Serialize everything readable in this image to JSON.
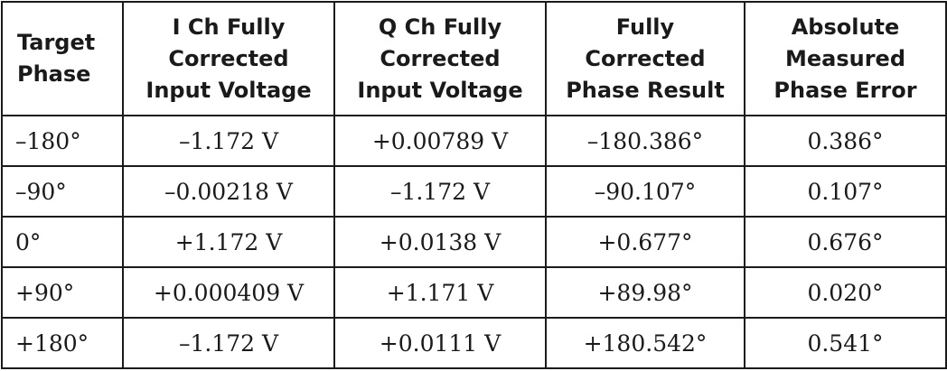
{
  "table": {
    "headers": [
      {
        "lines": [
          "Target",
          "Phase"
        ]
      },
      {
        "lines": [
          "I Ch Fully",
          "Corrected",
          "Input Voltage"
        ]
      },
      {
        "lines": [
          "Q Ch Fully",
          "Corrected",
          "Input Voltage"
        ]
      },
      {
        "lines": [
          "Fully",
          "Corrected",
          "Phase Result"
        ]
      },
      {
        "lines": [
          "Absolute",
          "Measured",
          "Phase Error"
        ]
      }
    ],
    "rows": [
      [
        "–180°",
        "–1.172 V",
        "+0.00789 V",
        "–180.386°",
        "0.386°"
      ],
      [
        "–90°",
        "–0.00218 V",
        "–1.172 V",
        "–90.107°",
        "0.107°"
      ],
      [
        "0°",
        "+1.172 V",
        "+0.0138 V",
        "+0.677°",
        "0.676°"
      ],
      [
        "+90°",
        "+0.000409 V",
        "+1.171 V",
        "+89.98°",
        "0.020°"
      ],
      [
        "+180°",
        "–1.172 V",
        "+0.0111 V",
        "+180.542°",
        "0.541°"
      ]
    ]
  }
}
